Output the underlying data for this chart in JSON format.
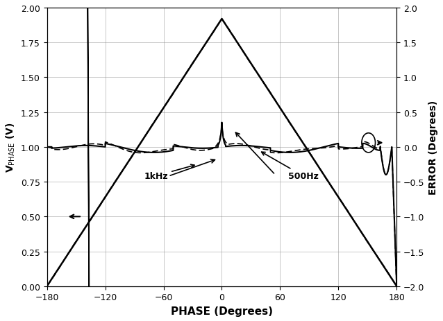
{
  "xlabel": "PHASE (Degrees)",
  "ylabel_left": "V_PHASE (V)",
  "ylabel_right": "ERROR (Degrees)",
  "xlim": [
    -180,
    180
  ],
  "ylim_left": [
    0,
    2.0
  ],
  "ylim_right": [
    -2.0,
    2.0
  ],
  "xticks": [
    -180,
    -120,
    -60,
    0,
    60,
    120,
    180
  ],
  "yticks_left": [
    0,
    0.25,
    0.5,
    0.75,
    1.0,
    1.25,
    1.5,
    1.75,
    2.0
  ],
  "yticks_right": [
    -2.0,
    -1.5,
    -1.0,
    -0.5,
    0.0,
    0.5,
    1.0,
    1.5,
    2.0
  ],
  "line_color": "black",
  "background_color": "white",
  "label_1khz": "1kHz",
  "label_500hz": "500Hz"
}
